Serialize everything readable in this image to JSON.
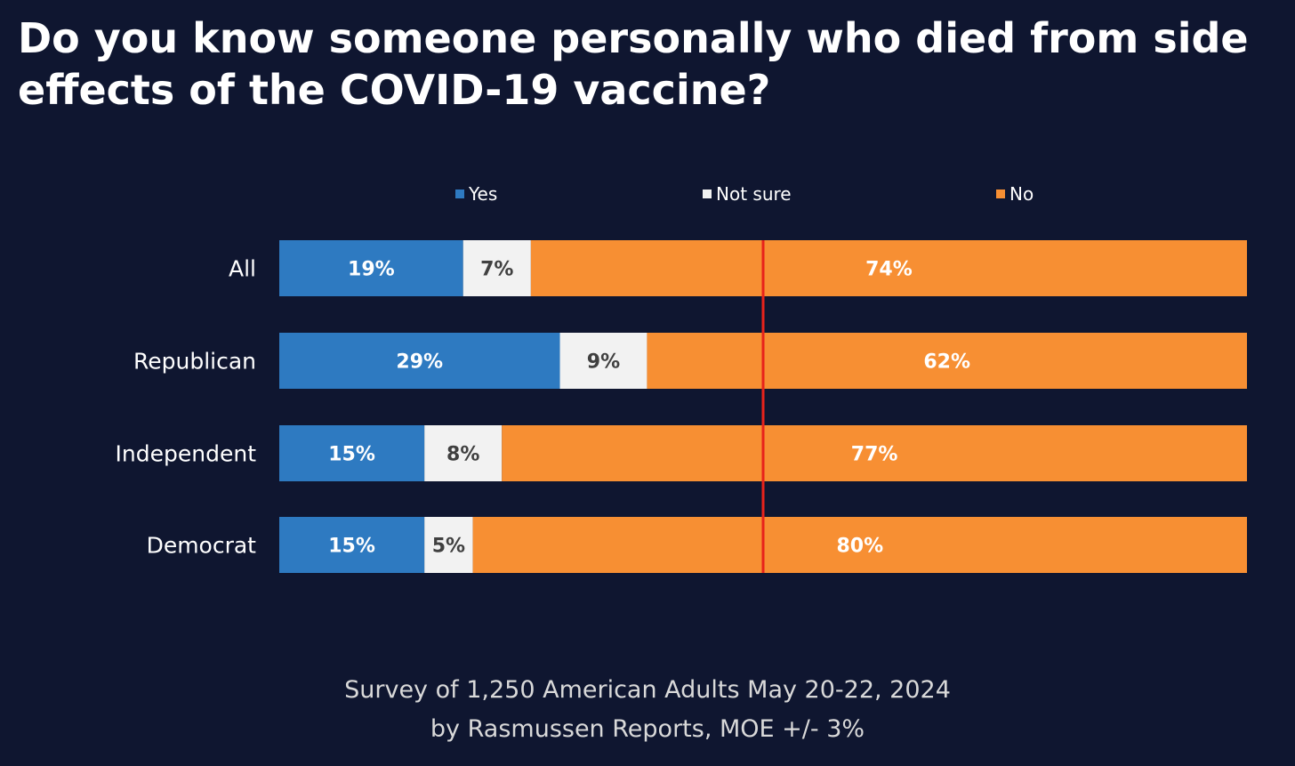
{
  "title": "Do you know someone personally who died from side effects of the COVID-19 vaccine?",
  "footer": {
    "line1": "Survey of 1,250 American Adults May 20-22, 2024",
    "line2": "by Rasmussen Reports, MOE +/- 3%"
  },
  "chart_data": {
    "type": "bar",
    "orientation": "horizontal",
    "stacked": true,
    "percent_stacked": true,
    "categories": [
      "All",
      "Republican",
      "Independent",
      "Democrat"
    ],
    "series": [
      {
        "name": "Yes",
        "color": "#2e7ac1",
        "label_color": "#ffffff",
        "values": [
          19,
          29,
          15,
          15
        ]
      },
      {
        "name": "Not sure",
        "color": "#f2f2f2",
        "label_color": "#404040",
        "values": [
          7,
          9,
          8,
          5
        ]
      },
      {
        "name": "No",
        "color": "#f78f33",
        "label_color": "#ffffff",
        "values": [
          74,
          62,
          77,
          80
        ]
      }
    ],
    "data_label_suffix": "%",
    "xlim": [
      0,
      100
    ],
    "reference_line": {
      "value": 50,
      "color": "#e8231b"
    },
    "legend_position": "top",
    "grid": false,
    "xlabel": "",
    "ylabel": ""
  }
}
